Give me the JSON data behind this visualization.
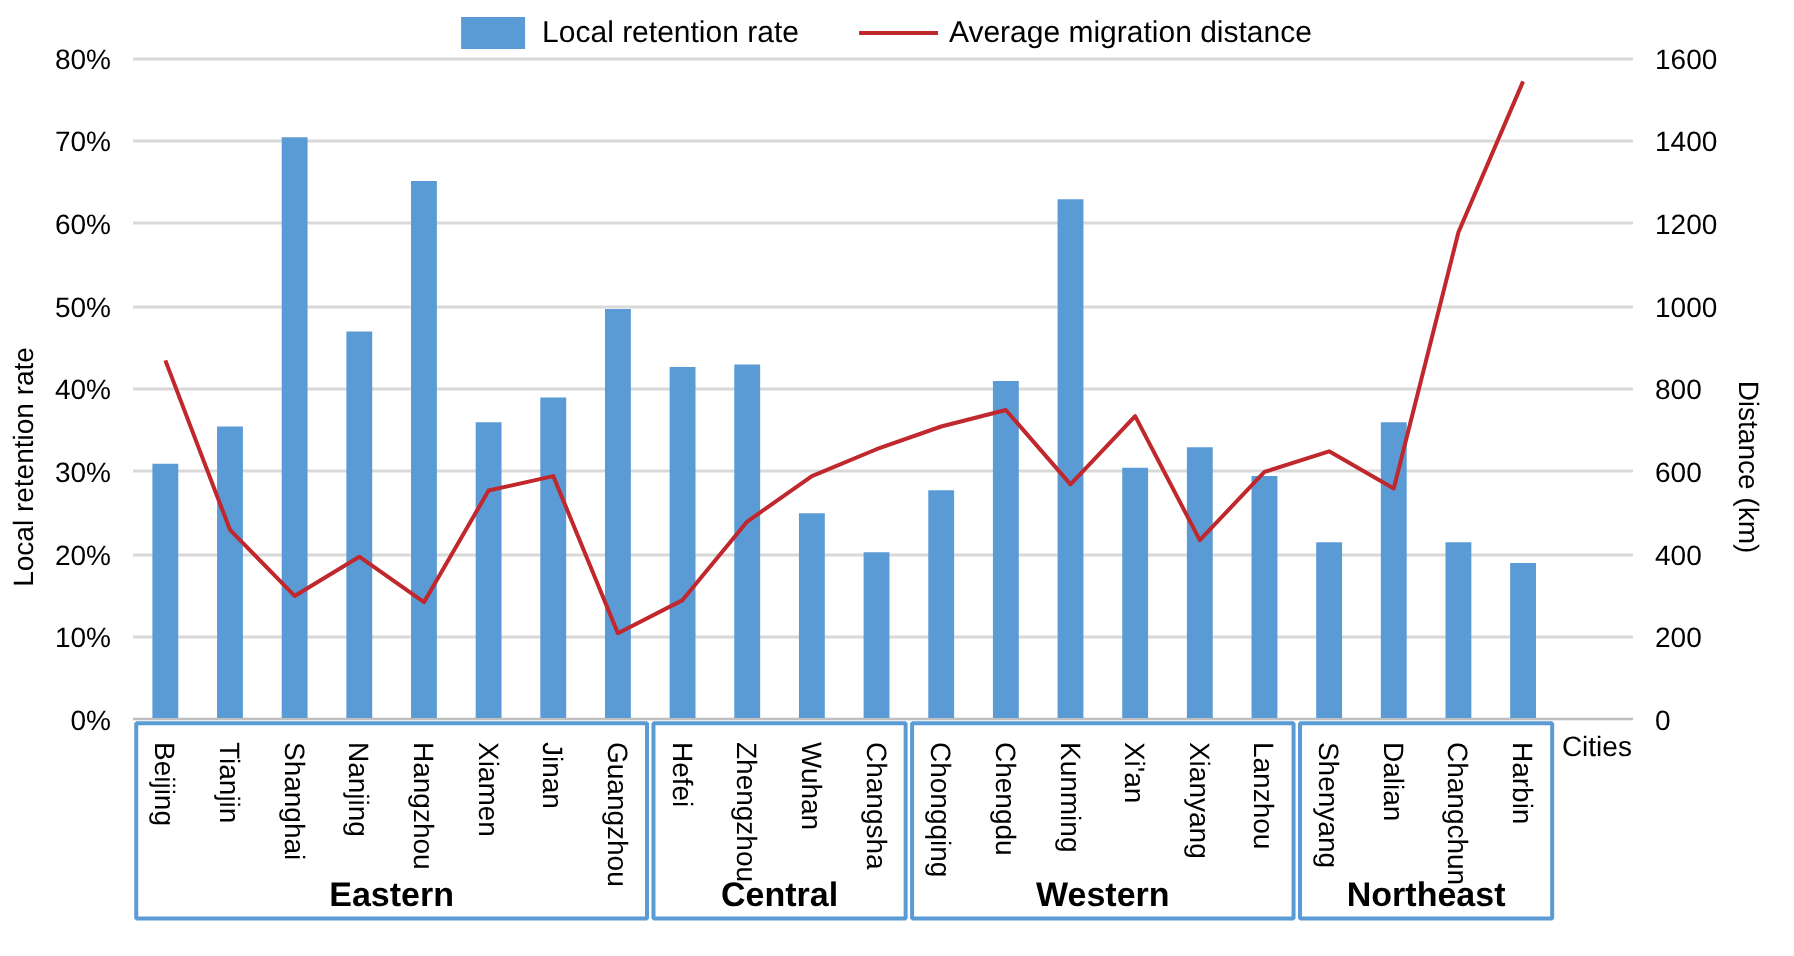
{
  "chart_data": {
    "type": "bar",
    "xlabel": "Cities",
    "ylabel": "Local retention rate",
    "y2label": "Distance (km)",
    "categories": [
      "Beijing",
      "Tianjin",
      "Shanghai",
      "Nanjing",
      "Hangzhou",
      "Xiamen",
      "Jinan",
      "Guangzhou",
      "Hefei",
      "Zhengzhou",
      "Wuhan",
      "Changsha",
      "Chongqing",
      "Chengdu",
      "Kunming",
      "Xi'an",
      "Xianyang",
      "Lanzhou",
      "Shenyang",
      "Dalian",
      "Changchun",
      "Harbin"
    ],
    "series": [
      {
        "name": "Local retention rate",
        "color": "#5b9bd5",
        "values": [
          0.31,
          0.355,
          0.705,
          0.47,
          0.652,
          0.36,
          0.39,
          0.497,
          0.427,
          0.43,
          0.25,
          0.203,
          0.278,
          0.41,
          0.63,
          0.305,
          0.33,
          0.295,
          0.215,
          0.36,
          0.215,
          0.19
        ]
      },
      {
        "name": "Average migration distance",
        "type": "line",
        "axis": "y2",
        "color": "#c0282d",
        "values": [
          870,
          460,
          300,
          395,
          285,
          555,
          590,
          210,
          290,
          480,
          590,
          655,
          710,
          750,
          570,
          735,
          435,
          600,
          650,
          560,
          1180,
          1545
        ]
      }
    ],
    "ylim": [
      0,
      0.8
    ],
    "yticks": [
      {
        "value": 0,
        "label": "0%"
      },
      {
        "value": 0.1,
        "label": "10%"
      },
      {
        "value": 0.2,
        "label": "20%"
      },
      {
        "value": 0.3,
        "label": "30%"
      },
      {
        "value": 0.4,
        "label": "40%"
      },
      {
        "value": 0.5,
        "label": "50%"
      },
      {
        "value": 0.6,
        "label": "60%"
      },
      {
        "value": 0.7,
        "label": "70%"
      },
      {
        "value": 0.8,
        "label": "80%"
      }
    ],
    "y2lim": [
      0,
      1600
    ],
    "y2ticks": [
      0,
      200,
      400,
      600,
      800,
      1000,
      1200,
      1400,
      1600
    ],
    "grid": "y",
    "legend": "top",
    "marker": "none",
    "line_style": "solid",
    "annotations": [
      "Eastern",
      "Central",
      "Western",
      "Northeast"
    ]
  }
}
